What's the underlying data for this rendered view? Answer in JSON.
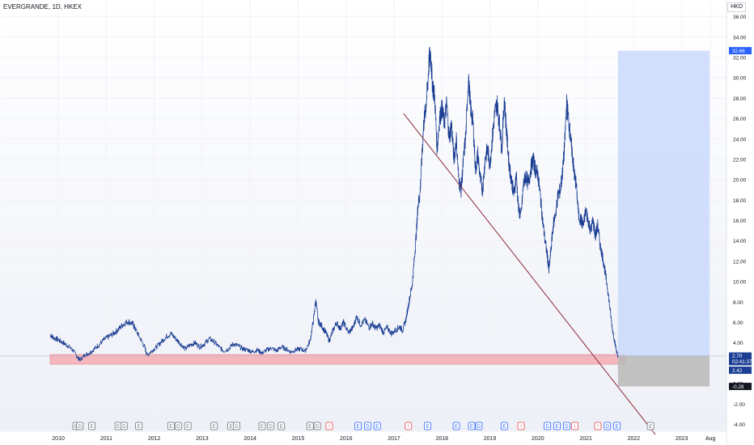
{
  "header": {
    "symbol_title": "EVERGRANDE, 1D, HKEX",
    "currency": "HKD",
    "scale_glyph": "3"
  },
  "colors": {
    "background": "#ffffff",
    "price_line": "#1c3f94",
    "trendline": "#8b2a37",
    "support_zone": "#f5a3aa",
    "target_zone": "#c9d9fb",
    "stop_zone": "#b8b8b8",
    "event_red": "#e5484d",
    "event_blue": "#2962ff",
    "event_gray": "#6b6f7a"
  },
  "chart_data": {
    "type": "line",
    "title": "",
    "xlabel": "",
    "ylabel": "",
    "x_unit": "year",
    "xlim": [
      2009.83,
      2023.9
    ],
    "ylim": [
      -4.6,
      37
    ],
    "y_ticks": [
      -4,
      -2,
      0,
      2,
      4,
      6,
      8,
      10,
      12,
      14,
      16,
      18,
      20,
      22,
      24,
      26,
      28,
      30,
      32,
      34,
      36
    ],
    "x_ticks": [
      {
        "x": 2010,
        "label": "2010"
      },
      {
        "x": 2011,
        "label": "2011"
      },
      {
        "x": 2012,
        "label": "2012"
      },
      {
        "x": 2013,
        "label": "2013"
      },
      {
        "x": 2014,
        "label": "2014"
      },
      {
        "x": 2015,
        "label": "2015"
      },
      {
        "x": 2016,
        "label": "2016"
      },
      {
        "x": 2017,
        "label": "2017"
      },
      {
        "x": 2018,
        "label": "2018"
      },
      {
        "x": 2019,
        "label": "2019"
      },
      {
        "x": 2020,
        "label": "2020"
      },
      {
        "x": 2021,
        "label": "2021"
      },
      {
        "x": 2022,
        "label": "2022"
      },
      {
        "x": 2023,
        "label": "2023"
      },
      {
        "x": 2023.6,
        "label": "Aug"
      }
    ],
    "grid": true,
    "series": [
      {
        "name": "",
        "points": [
          [
            2009.83,
            4.8
          ],
          [
            2009.9,
            4.5
          ],
          [
            2010.0,
            4.3
          ],
          [
            2010.1,
            4.0
          ],
          [
            2010.2,
            3.7
          ],
          [
            2010.3,
            3.3
          ],
          [
            2010.4,
            2.6
          ],
          [
            2010.45,
            2.3
          ],
          [
            2010.55,
            2.8
          ],
          [
            2010.65,
            3.0
          ],
          [
            2010.75,
            3.4
          ],
          [
            2010.85,
            3.8
          ],
          [
            2010.95,
            4.3
          ],
          [
            2011.05,
            4.6
          ],
          [
            2011.15,
            4.9
          ],
          [
            2011.25,
            5.3
          ],
          [
            2011.35,
            5.8
          ],
          [
            2011.45,
            6.1
          ],
          [
            2011.55,
            5.9
          ],
          [
            2011.6,
            5.4
          ],
          [
            2011.7,
            4.5
          ],
          [
            2011.8,
            3.6
          ],
          [
            2011.85,
            2.8
          ],
          [
            2011.95,
            3.2
          ],
          [
            2012.05,
            3.6
          ],
          [
            2012.15,
            4.1
          ],
          [
            2012.25,
            4.6
          ],
          [
            2012.35,
            4.9
          ],
          [
            2012.45,
            4.4
          ],
          [
            2012.55,
            3.9
          ],
          [
            2012.65,
            3.4
          ],
          [
            2012.75,
            3.8
          ],
          [
            2012.85,
            4.0
          ],
          [
            2012.95,
            3.6
          ],
          [
            2013.05,
            3.9
          ],
          [
            2013.15,
            4.4
          ],
          [
            2013.25,
            4.1
          ],
          [
            2013.35,
            3.6
          ],
          [
            2013.45,
            3.2
          ],
          [
            2013.55,
            3.4
          ],
          [
            2013.65,
            3.9
          ],
          [
            2013.75,
            3.7
          ],
          [
            2013.85,
            3.4
          ],
          [
            2013.95,
            3.3
          ],
          [
            2014.05,
            3.1
          ],
          [
            2014.15,
            3.3
          ],
          [
            2014.25,
            3.0
          ],
          [
            2014.35,
            3.3
          ],
          [
            2014.45,
            3.5
          ],
          [
            2014.55,
            3.2
          ],
          [
            2014.65,
            3.6
          ],
          [
            2014.75,
            3.4
          ],
          [
            2014.85,
            3.1
          ],
          [
            2014.95,
            3.3
          ],
          [
            2015.05,
            3.4
          ],
          [
            2015.15,
            3.2
          ],
          [
            2015.25,
            4.2
          ],
          [
            2015.32,
            6.2
          ],
          [
            2015.37,
            8.2
          ],
          [
            2015.42,
            6.1
          ],
          [
            2015.5,
            5.6
          ],
          [
            2015.58,
            5.0
          ],
          [
            2015.65,
            4.2
          ],
          [
            2015.72,
            5.1
          ],
          [
            2015.8,
            6.0
          ],
          [
            2015.88,
            5.4
          ],
          [
            2015.95,
            6.0
          ],
          [
            2016.05,
            5.0
          ],
          [
            2016.15,
            5.5
          ],
          [
            2016.22,
            6.6
          ],
          [
            2016.3,
            5.8
          ],
          [
            2016.4,
            6.2
          ],
          [
            2016.48,
            5.5
          ],
          [
            2016.55,
            5.9
          ],
          [
            2016.62,
            5.4
          ],
          [
            2016.7,
            5.7
          ],
          [
            2016.78,
            5.0
          ],
          [
            2016.86,
            5.5
          ],
          [
            2016.95,
            4.9
          ],
          [
            2017.05,
            5.3
          ],
          [
            2017.12,
            5.6
          ],
          [
            2017.18,
            5.2
          ],
          [
            2017.25,
            6.3
          ],
          [
            2017.32,
            8.2
          ],
          [
            2017.38,
            9.7
          ],
          [
            2017.42,
            12.0
          ],
          [
            2017.47,
            15.0
          ],
          [
            2017.5,
            17.5
          ],
          [
            2017.54,
            18.5
          ],
          [
            2017.58,
            22.0
          ],
          [
            2017.62,
            25.5
          ],
          [
            2017.66,
            27.0
          ],
          [
            2017.7,
            29.0
          ],
          [
            2017.73,
            31.5
          ],
          [
            2017.76,
            32.5
          ],
          [
            2017.8,
            29.5
          ],
          [
            2017.85,
            28.0
          ],
          [
            2017.9,
            23.0
          ],
          [
            2017.95,
            26.0
          ],
          [
            2018.0,
            27.0
          ],
          [
            2018.05,
            25.5
          ],
          [
            2018.1,
            27.5
          ],
          [
            2018.15,
            24.0
          ],
          [
            2018.2,
            25.5
          ],
          [
            2018.25,
            22.0
          ],
          [
            2018.3,
            24.0
          ],
          [
            2018.35,
            20.0
          ],
          [
            2018.4,
            19.0
          ],
          [
            2018.45,
            22.0
          ],
          [
            2018.5,
            24.5
          ],
          [
            2018.55,
            30.0
          ],
          [
            2018.6,
            27.0
          ],
          [
            2018.65,
            25.5
          ],
          [
            2018.7,
            21.0
          ],
          [
            2018.75,
            22.5
          ],
          [
            2018.8,
            20.0
          ],
          [
            2018.85,
            19.0
          ],
          [
            2018.9,
            22.0
          ],
          [
            2018.95,
            23.0
          ],
          [
            2019.0,
            21.5
          ],
          [
            2019.05,
            24.0
          ],
          [
            2019.1,
            26.5
          ],
          [
            2019.15,
            27.5
          ],
          [
            2019.2,
            25.5
          ],
          [
            2019.25,
            23.0
          ],
          [
            2019.3,
            28.0
          ],
          [
            2019.35,
            24.5
          ],
          [
            2019.4,
            21.5
          ],
          [
            2019.45,
            20.0
          ],
          [
            2019.5,
            18.5
          ],
          [
            2019.55,
            20.5
          ],
          [
            2019.6,
            17.0
          ],
          [
            2019.65,
            16.5
          ],
          [
            2019.7,
            19.5
          ],
          [
            2019.75,
            20.5
          ],
          [
            2019.8,
            19.5
          ],
          [
            2019.85,
            21.0
          ],
          [
            2019.9,
            22.0
          ],
          [
            2019.95,
            21.0
          ],
          [
            2020.0,
            20.5
          ],
          [
            2020.05,
            18.5
          ],
          [
            2020.1,
            16.0
          ],
          [
            2020.15,
            14.0
          ],
          [
            2020.2,
            12.5
          ],
          [
            2020.23,
            11.0
          ],
          [
            2020.27,
            13.0
          ],
          [
            2020.32,
            15.5
          ],
          [
            2020.38,
            17.0
          ],
          [
            2020.42,
            18.5
          ],
          [
            2020.47,
            19.0
          ],
          [
            2020.52,
            21.0
          ],
          [
            2020.56,
            23.5
          ],
          [
            2020.6,
            27.5
          ],
          [
            2020.64,
            26.0
          ],
          [
            2020.68,
            24.0
          ],
          [
            2020.72,
            22.5
          ],
          [
            2020.76,
            20.5
          ],
          [
            2020.8,
            19.5
          ],
          [
            2020.85,
            16.5
          ],
          [
            2020.9,
            16.0
          ],
          [
            2020.95,
            15.5
          ],
          [
            2021.0,
            17.0
          ],
          [
            2021.05,
            16.0
          ],
          [
            2021.1,
            15.0
          ],
          [
            2021.15,
            16.0
          ],
          [
            2021.2,
            14.5
          ],
          [
            2021.25,
            15.5
          ],
          [
            2021.3,
            13.5
          ],
          [
            2021.35,
            12.5
          ],
          [
            2021.4,
            11.0
          ],
          [
            2021.45,
            9.5
          ],
          [
            2021.5,
            7.5
          ],
          [
            2021.55,
            5.5
          ],
          [
            2021.6,
            4.2
          ],
          [
            2021.64,
            3.2
          ],
          [
            2021.67,
            2.7
          ]
        ]
      }
    ],
    "trendline": {
      "x1": 2017.2,
      "y1": 26.5,
      "x2": 2022.45,
      "y2": -5.0
    },
    "support_zone": {
      "x1": 2009.83,
      "x2": 2021.83,
      "y_low": 1.9,
      "y_high": 2.85
    },
    "long_position": {
      "x1": 2021.67,
      "x2": 2023.58,
      "entry": 2.7,
      "target": 32.66,
      "stop": -0.28
    },
    "price_labels": [
      {
        "value": 32.66,
        "text": "32.66",
        "kind": "target"
      },
      {
        "value": 2.7,
        "text": "2.70",
        "kind": "last"
      },
      {
        "value": 2.7,
        "text": "02:41:37",
        "kind": "countdown"
      },
      {
        "value": 2.42,
        "text": "2.42",
        "kind": "line"
      },
      {
        "value": -0.28,
        "text": "-0.28",
        "kind": "stop"
      }
    ],
    "events": [
      {
        "x": 2010.37,
        "label": "E",
        "color": "gray"
      },
      {
        "x": 2010.45,
        "label": "D",
        "color": "gray"
      },
      {
        "x": 2010.7,
        "label": "E",
        "color": "gray"
      },
      {
        "x": 2011.25,
        "label": "E",
        "color": "gray"
      },
      {
        "x": 2011.37,
        "label": "D",
        "color": "gray"
      },
      {
        "x": 2011.68,
        "label": "E",
        "color": "gray"
      },
      {
        "x": 2012.35,
        "label": "E",
        "color": "gray"
      },
      {
        "x": 2012.5,
        "label": "D",
        "color": "gray"
      },
      {
        "x": 2012.7,
        "label": "E",
        "color": "gray"
      },
      {
        "x": 2013.25,
        "label": "E",
        "color": "gray"
      },
      {
        "x": 2013.6,
        "label": "E",
        "color": "gray"
      },
      {
        "x": 2013.72,
        "label": "D",
        "color": "gray"
      },
      {
        "x": 2014.25,
        "label": "E",
        "color": "gray"
      },
      {
        "x": 2014.43,
        "label": "D",
        "color": "gray"
      },
      {
        "x": 2014.65,
        "label": "E",
        "color": "gray"
      },
      {
        "x": 2015.25,
        "label": "E",
        "color": "gray"
      },
      {
        "x": 2015.4,
        "label": "D",
        "color": "gray"
      },
      {
        "x": 2015.65,
        "label": "!",
        "color": "red"
      },
      {
        "x": 2016.25,
        "label": "E",
        "color": "blue"
      },
      {
        "x": 2016.45,
        "label": "D",
        "color": "blue"
      },
      {
        "x": 2016.65,
        "label": "E",
        "color": "blue"
      },
      {
        "x": 2017.3,
        "label": "!",
        "color": "red"
      },
      {
        "x": 2017.7,
        "label": "E",
        "color": "blue"
      },
      {
        "x": 2018.3,
        "label": "E",
        "color": "blue"
      },
      {
        "x": 2018.62,
        "label": "E",
        "color": "blue"
      },
      {
        "x": 2018.77,
        "label": "D",
        "color": "blue"
      },
      {
        "x": 2019.3,
        "label": "E",
        "color": "blue"
      },
      {
        "x": 2019.65,
        "label": "!",
        "color": "red"
      },
      {
        "x": 2020.2,
        "label": "D",
        "color": "blue"
      },
      {
        "x": 2020.4,
        "label": "E",
        "color": "blue"
      },
      {
        "x": 2020.6,
        "label": "D",
        "color": "blue"
      },
      {
        "x": 2020.77,
        "label": "!",
        "color": "red"
      },
      {
        "x": 2021.25,
        "label": "!",
        "color": "red"
      },
      {
        "x": 2021.45,
        "label": "D",
        "color": "blue"
      },
      {
        "x": 2021.65,
        "label": "E",
        "color": "blue"
      },
      {
        "x": 2022.35,
        "label": "E",
        "color": "gray"
      }
    ]
  }
}
